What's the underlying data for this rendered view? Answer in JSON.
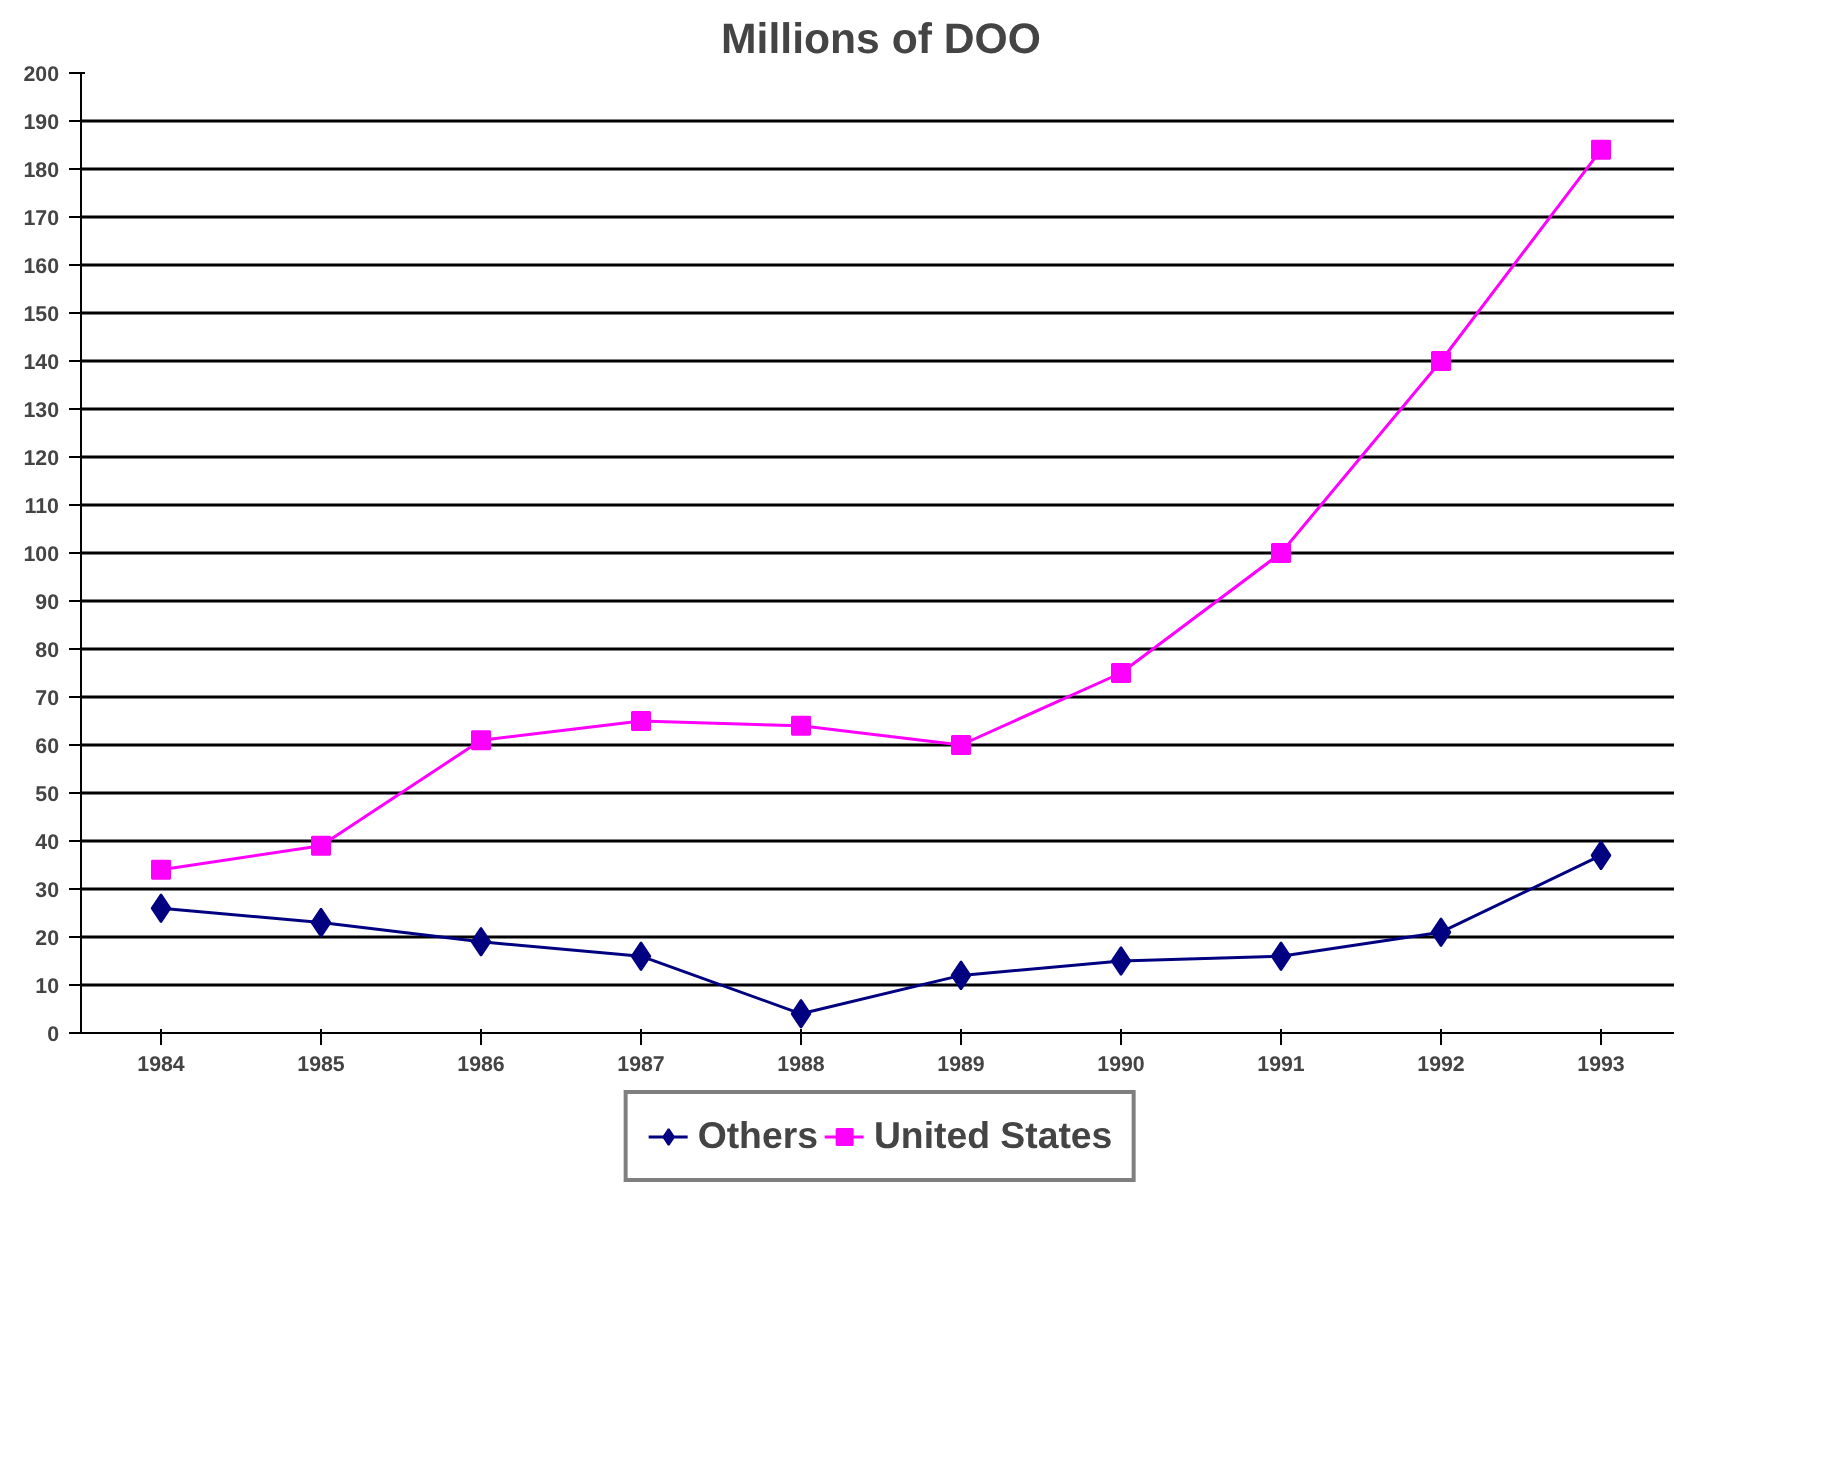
{
  "chart_data": {
    "type": "line",
    "title": "Millions of DOO",
    "categories": [
      "1984",
      "1985",
      "1986",
      "1987",
      "1988",
      "1989",
      "1990",
      "1991",
      "1992",
      "1993"
    ],
    "series": [
      {
        "name": "Others",
        "color": "#000080",
        "marker": "diamond",
        "values": [
          26,
          23,
          19,
          16,
          4,
          12,
          15,
          16,
          21,
          37
        ]
      },
      {
        "name": "United States",
        "color": "#ff00ff",
        "marker": "square",
        "values": [
          34,
          39,
          61,
          65,
          64,
          60,
          75,
          100,
          140,
          184
        ]
      }
    ],
    "ylim": [
      0,
      200
    ],
    "yticks": [
      0,
      10,
      20,
      30,
      40,
      50,
      60,
      70,
      80,
      90,
      100,
      110,
      120,
      130,
      140,
      150,
      160,
      170,
      180,
      190,
      200
    ],
    "grid": "y",
    "legend": "bottom",
    "line_style": "solid"
  }
}
